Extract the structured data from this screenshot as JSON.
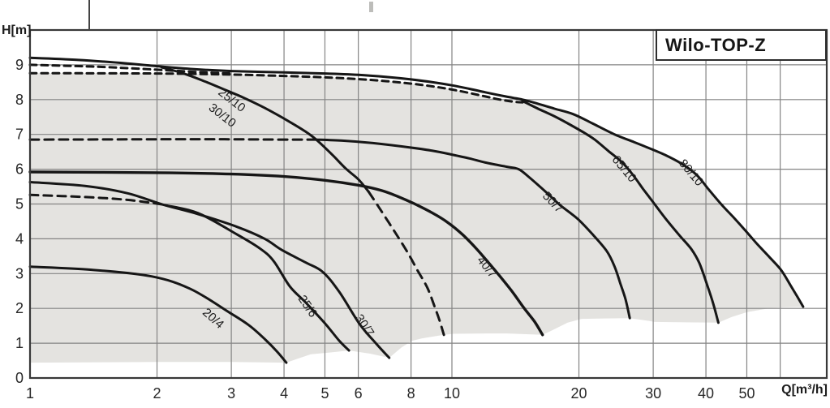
{
  "title_box": {
    "label": "Wilo-TOP-Z"
  },
  "axes": {
    "y_label": "H[m]",
    "x_label": "Q[m³/h]"
  },
  "colors": {
    "background": "#ffffff",
    "region_fill": "#e4e3e0",
    "grid": "#848484",
    "frame": "#383838",
    "curve": "#161616",
    "text": "#272727"
  },
  "chart_data": {
    "type": "line",
    "title": "Wilo-TOP-Z",
    "xlabel": "Q[m³/h]",
    "ylabel": "H[m]",
    "x_scale": "log",
    "xlim": [
      1,
      77
    ],
    "ylim": [
      0,
      10
    ],
    "grid": true,
    "x_ticks": [
      {
        "q": 1,
        "label": "1"
      },
      {
        "q": 2,
        "label": "2"
      },
      {
        "q": 3,
        "label": "3"
      },
      {
        "q": 4,
        "label": "4"
      },
      {
        "q": 5,
        "label": "5"
      },
      {
        "q": 6,
        "label": "6"
      },
      {
        "q": 8,
        "label": "8"
      },
      {
        "q": 10,
        "label": "10"
      },
      {
        "q": 20,
        "label": "20"
      },
      {
        "q": 30,
        "label": "30"
      },
      {
        "q": 40,
        "label": "40"
      },
      {
        "q": 50,
        "label": "50"
      }
    ],
    "x_gridlines": [
      2,
      3,
      4,
      5,
      6,
      8,
      10,
      20,
      30,
      40,
      50,
      60
    ],
    "y_ticks": [
      {
        "h": 0,
        "label": "0"
      },
      {
        "h": 1,
        "label": "1"
      },
      {
        "h": 2,
        "label": "2"
      },
      {
        "h": 3,
        "label": "3"
      },
      {
        "h": 4,
        "label": "4"
      },
      {
        "h": 5,
        "label": "5"
      },
      {
        "h": 6,
        "label": "6"
      },
      {
        "h": 7,
        "label": "7"
      },
      {
        "h": 8,
        "label": "8"
      },
      {
        "h": 9,
        "label": "9"
      }
    ],
    "operating_region": [
      [
        1,
        8.76
      ],
      [
        2,
        8.75
      ],
      [
        3,
        8.72
      ],
      [
        4,
        8.68
      ],
      [
        5,
        8.64
      ],
      [
        6,
        8.59
      ],
      [
        7,
        8.53
      ],
      [
        8,
        8.46
      ],
      [
        9,
        8.38
      ],
      [
        10,
        8.29
      ],
      [
        11,
        8.19
      ],
      [
        12,
        8.09
      ],
      [
        13,
        8.0
      ],
      [
        14.7,
        7.92
      ],
      [
        16,
        7.85
      ],
      [
        17.5,
        7.72
      ],
      [
        19.4,
        7.55
      ],
      [
        21.5,
        7.3
      ],
      [
        24.3,
        6.97
      ],
      [
        27,
        6.76
      ],
      [
        29,
        6.61
      ],
      [
        32,
        6.39
      ],
      [
        35,
        6.14
      ],
      [
        38,
        5.82
      ],
      [
        40.6,
        5.4
      ],
      [
        43.5,
        4.97
      ],
      [
        46.4,
        4.61
      ],
      [
        50,
        4.17
      ],
      [
        53,
        3.82
      ],
      [
        56.5,
        3.46
      ],
      [
        60.3,
        3.08
      ],
      [
        63.5,
        2.64
      ],
      [
        66,
        2.3
      ],
      [
        68,
        2.04
      ],
      [
        61,
        2.03
      ],
      [
        56.2,
        2.0
      ],
      [
        50,
        1.89
      ],
      [
        46,
        1.75
      ],
      [
        42.8,
        1.59
      ],
      [
        36,
        1.6
      ],
      [
        30.2,
        1.61
      ],
      [
        29.3,
        1.64
      ],
      [
        26.4,
        1.72
      ],
      [
        23,
        1.71
      ],
      [
        20.3,
        1.7
      ],
      [
        18.8,
        1.59
      ],
      [
        17.2,
        1.36
      ],
      [
        16.4,
        1.24
      ],
      [
        13.5,
        1.28
      ],
      [
        12.1,
        1.28
      ],
      [
        10.1,
        1.27
      ],
      [
        9.57,
        1.24
      ],
      [
        8.5,
        1.14
      ],
      [
        8.05,
        1.07
      ],
      [
        7.6,
        0.88
      ],
      [
        7.1,
        0.58
      ],
      [
        6.4,
        0.7
      ],
      [
        5.7,
        0.79
      ],
      [
        5.1,
        0.73
      ],
      [
        4.63,
        0.68
      ],
      [
        4.3,
        0.55
      ],
      [
        4.05,
        0.44
      ],
      [
        3,
        0.46
      ],
      [
        2,
        0.46
      ],
      [
        1,
        0.44
      ]
    ],
    "curves": [
      {
        "id": "envelope-top-80-10",
        "model": "25/10 30/10 80/10 envelope",
        "style": "solid",
        "width": 3,
        "points": [
          [
            1,
            9.2
          ],
          [
            1.3,
            9.14
          ],
          [
            1.7,
            9.04
          ],
          [
            2,
            8.96
          ],
          [
            2.4,
            8.88
          ],
          [
            3,
            8.82
          ],
          [
            4,
            8.78
          ],
          [
            5,
            8.75
          ],
          [
            6,
            8.71
          ],
          [
            7,
            8.65
          ],
          [
            8,
            8.58
          ],
          [
            9,
            8.5
          ],
          [
            10,
            8.41
          ],
          [
            11,
            8.31
          ],
          [
            12,
            8.21
          ],
          [
            13.4,
            8.09
          ],
          [
            14.7,
            8.0
          ],
          [
            16,
            7.88
          ],
          [
            17.5,
            7.74
          ],
          [
            19.4,
            7.58
          ],
          [
            21.5,
            7.32
          ],
          [
            24.3,
            7.0
          ],
          [
            27,
            6.78
          ],
          [
            29,
            6.63
          ],
          [
            32,
            6.41
          ],
          [
            35,
            6.16
          ],
          [
            38,
            5.84
          ],
          [
            40.6,
            5.42
          ],
          [
            43.5,
            4.99
          ],
          [
            46.4,
            4.63
          ],
          [
            50,
            4.19
          ],
          [
            53,
            3.84
          ],
          [
            56.5,
            3.48
          ],
          [
            60.3,
            3.1
          ],
          [
            63.5,
            2.66
          ],
          [
            66,
            2.32
          ],
          [
            68,
            2.05
          ]
        ]
      },
      {
        "id": "curve-25-10-30-10",
        "model": "25/10 30/10",
        "style": "solid",
        "width": 3,
        "points": [
          [
            2.05,
            8.93
          ],
          [
            2.3,
            8.76
          ],
          [
            2.6,
            8.52
          ],
          [
            2.9,
            8.28
          ],
          [
            3.2,
            8.06
          ],
          [
            3.6,
            7.76
          ],
          [
            4.1,
            7.38
          ],
          [
            4.5,
            7.08
          ],
          [
            4.77,
            6.85
          ],
          [
            5.2,
            6.42
          ],
          [
            5.6,
            6.02
          ],
          [
            6,
            5.71
          ],
          [
            6.35,
            5.35
          ]
        ]
      },
      {
        "id": "curve-25-10-30-10-dashed-tail",
        "model": "25/10 30/10",
        "style": "dashed",
        "width": 3,
        "dash": "11 8",
        "points": [
          [
            6.35,
            5.35
          ],
          [
            6.7,
            4.92
          ],
          [
            7.1,
            4.45
          ],
          [
            7.5,
            4.0
          ],
          [
            7.9,
            3.55
          ],
          [
            8.3,
            3.08
          ],
          [
            8.75,
            2.59
          ],
          [
            9.1,
            2.05
          ],
          [
            9.35,
            1.65
          ],
          [
            9.57,
            1.24
          ]
        ]
      },
      {
        "id": "dashed-9m",
        "model": "30/10 variant",
        "style": "dashed",
        "width": 3,
        "dash": "8 6",
        "points": [
          [
            1,
            9.0
          ],
          [
            1.4,
            8.95
          ],
          [
            1.8,
            8.89
          ],
          [
            2.2,
            8.83
          ],
          [
            2.6,
            8.78
          ],
          [
            3,
            8.75
          ]
        ]
      },
      {
        "id": "dashed-8-76m",
        "model": "upper dashed limit",
        "style": "dashed",
        "width": 3,
        "dash": "8 6",
        "points": [
          [
            1,
            8.76
          ],
          [
            2,
            8.75
          ],
          [
            3,
            8.72
          ],
          [
            4,
            8.68
          ],
          [
            5,
            8.64
          ],
          [
            6,
            8.59
          ],
          [
            7,
            8.53
          ],
          [
            8,
            8.46
          ],
          [
            9,
            8.38
          ],
          [
            10,
            8.29
          ],
          [
            11,
            8.19
          ],
          [
            12,
            8.09
          ],
          [
            13,
            8.0
          ],
          [
            14,
            7.94
          ],
          [
            14.7,
            7.92
          ]
        ]
      },
      {
        "id": "curve-65-10",
        "model": "65/10",
        "style": "solid",
        "width": 3,
        "points": [
          [
            14.7,
            7.96
          ],
          [
            16,
            7.74
          ],
          [
            17.5,
            7.52
          ],
          [
            18.8,
            7.32
          ],
          [
            20.5,
            7.06
          ],
          [
            21.8,
            6.85
          ],
          [
            23.5,
            6.52
          ],
          [
            25.3,
            6.2
          ],
          [
            26.8,
            5.85
          ],
          [
            28.4,
            5.43
          ],
          [
            30,
            5.05
          ],
          [
            32,
            4.6
          ],
          [
            34.5,
            4.12
          ],
          [
            36.9,
            3.71
          ],
          [
            38.6,
            3.3
          ],
          [
            40.2,
            2.7
          ],
          [
            41.6,
            2.15
          ],
          [
            42.8,
            1.59
          ]
        ]
      },
      {
        "id": "curve-50-7-dashed-head",
        "model": "50/7",
        "style": "dashed",
        "width": 3,
        "dash": "11 7",
        "points": [
          [
            1,
            6.85
          ],
          [
            2,
            6.86
          ],
          [
            3,
            6.86
          ],
          [
            4,
            6.85
          ],
          [
            4.77,
            6.85
          ]
        ]
      },
      {
        "id": "curve-50-7",
        "model": "50/7",
        "style": "solid",
        "width": 3,
        "points": [
          [
            4.77,
            6.85
          ],
          [
            5.5,
            6.82
          ],
          [
            6.5,
            6.75
          ],
          [
            8,
            6.62
          ],
          [
            9,
            6.53
          ],
          [
            10,
            6.42
          ],
          [
            11,
            6.31
          ],
          [
            12,
            6.19
          ],
          [
            13.5,
            6.07
          ],
          [
            14.4,
            6.0
          ],
          [
            15.2,
            5.78
          ],
          [
            16.1,
            5.52
          ],
          [
            17,
            5.26
          ],
          [
            18,
            4.98
          ],
          [
            19,
            4.76
          ],
          [
            20,
            4.54
          ],
          [
            21.5,
            4.14
          ],
          [
            23.3,
            3.64
          ],
          [
            24.3,
            3.2
          ],
          [
            25.1,
            2.7
          ],
          [
            25.8,
            2.26
          ],
          [
            26.4,
            1.72
          ]
        ]
      },
      {
        "id": "curve-40-7",
        "model": "40/7",
        "style": "solid",
        "width": 3.4,
        "points": [
          [
            1,
            5.92
          ],
          [
            2,
            5.9
          ],
          [
            3,
            5.86
          ],
          [
            4,
            5.79
          ],
          [
            5,
            5.68
          ],
          [
            6,
            5.54
          ],
          [
            6.8,
            5.39
          ],
          [
            7.5,
            5.2
          ],
          [
            8.2,
            4.99
          ],
          [
            9,
            4.74
          ],
          [
            9.8,
            4.46
          ],
          [
            10.6,
            4.12
          ],
          [
            11.4,
            3.73
          ],
          [
            12.2,
            3.32
          ],
          [
            13,
            2.92
          ],
          [
            13.9,
            2.48
          ],
          [
            14.8,
            2.02
          ],
          [
            15.7,
            1.62
          ],
          [
            16.4,
            1.24
          ]
        ]
      },
      {
        "id": "curve-30-7",
        "model": "30/7",
        "style": "solid",
        "width": 3,
        "points": [
          [
            1,
            5.63
          ],
          [
            1.35,
            5.52
          ],
          [
            1.7,
            5.31
          ],
          [
            2.07,
            4.98
          ],
          [
            2.5,
            4.71
          ],
          [
            3.1,
            4.34
          ],
          [
            3.6,
            4.0
          ],
          [
            3.95,
            3.68
          ],
          [
            4.5,
            3.32
          ],
          [
            4.94,
            3.05
          ],
          [
            5.41,
            2.47
          ],
          [
            6.05,
            1.54
          ],
          [
            6.6,
            1.0
          ],
          [
            7.1,
            0.58
          ]
        ]
      },
      {
        "id": "curve-25-6-dashed-head",
        "model": "25/6",
        "style": "dashed",
        "width": 3,
        "dash": "10 7",
        "points": [
          [
            1,
            5.26
          ],
          [
            1.35,
            5.2
          ],
          [
            1.7,
            5.12
          ],
          [
            2.05,
            4.99
          ]
        ]
      },
      {
        "id": "curve-25-6",
        "model": "25/6",
        "style": "solid",
        "width": 3,
        "points": [
          [
            2.1,
            4.96
          ],
          [
            2.5,
            4.74
          ],
          [
            3.07,
            4.15
          ],
          [
            3.5,
            3.73
          ],
          [
            3.78,
            3.36
          ],
          [
            4.13,
            2.63
          ],
          [
            4.5,
            2.17
          ],
          [
            5,
            1.57
          ],
          [
            5.4,
            1.08
          ],
          [
            5.7,
            0.79
          ]
        ]
      },
      {
        "id": "curve-20-4",
        "model": "20/4",
        "style": "solid",
        "width": 3,
        "points": [
          [
            1,
            3.2
          ],
          [
            1.4,
            3.11
          ],
          [
            1.94,
            2.92
          ],
          [
            2.4,
            2.56
          ],
          [
            2.97,
            1.88
          ],
          [
            3.3,
            1.52
          ],
          [
            3.6,
            1.12
          ],
          [
            3.85,
            0.76
          ],
          [
            4.05,
            0.44
          ]
        ]
      }
    ],
    "model_labels": [
      {
        "text": "25/10",
        "q": 2.97,
        "h": 7.9,
        "rot": 38
      },
      {
        "text": "30/10",
        "q": 2.82,
        "h": 7.46,
        "rot": 38
      },
      {
        "text": "65/10",
        "q": 25.2,
        "h": 5.94,
        "rot": 50
      },
      {
        "text": "80/10",
        "q": 36.3,
        "h": 5.83,
        "rot": 50
      },
      {
        "text": "50/7",
        "q": 17.1,
        "h": 4.97,
        "rot": 46
      },
      {
        "text": "40/7",
        "q": 11.9,
        "h": 3.12,
        "rot": 52
      },
      {
        "text": "30/7",
        "q": 6.1,
        "h": 1.45,
        "rot": 56
      },
      {
        "text": "25/6",
        "q": 4.47,
        "h": 2.0,
        "rot": 56
      },
      {
        "text": "20/4",
        "q": 2.68,
        "h": 1.63,
        "rot": 42
      }
    ]
  }
}
